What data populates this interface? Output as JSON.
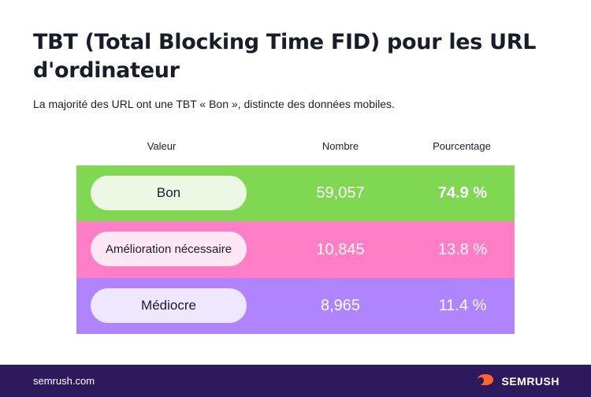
{
  "title": "TBT (Total Blocking Time FID) pour les URL d'ordinateur",
  "subtitle": "La majorité des URL ont une TBT « Bon », distincte des données mobiles.",
  "chart_data": {
    "type": "table",
    "columns": [
      "Valeur",
      "Nombre",
      "Pourcentage"
    ],
    "rows": [
      {
        "valeur": "Bon",
        "nombre": "59,057",
        "pourcentage": "74.9 %",
        "count": 59057,
        "percent": 74.9,
        "color": "#80d752",
        "pill_color": "#ecf7e4"
      },
      {
        "valeur": "Amélioration nécessaire",
        "nombre": "10,845",
        "pourcentage": "13.8 %",
        "count": 10845,
        "percent": 13.8,
        "color": "#ff7ec6",
        "pill_color": "#ffe6f4"
      },
      {
        "valeur": "Médiocre",
        "nombre": "8,965",
        "pourcentage": "11.4 %",
        "count": 8965,
        "percent": 11.4,
        "color": "#b083ff",
        "pill_color": "#efe7ff"
      }
    ]
  },
  "footer": {
    "site": "semrush.com",
    "brand": "SEMRUSH",
    "brand_icon": "semrush-flame-icon",
    "brand_color": "#ff642d",
    "background": "#2d1a5c"
  }
}
